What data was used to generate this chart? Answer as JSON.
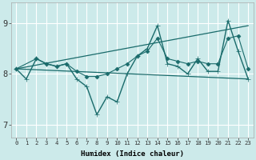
{
  "xlabel": "Humidex (Indice chaleur)",
  "bg_color": "#cceaea",
  "grid_color": "#ffffff",
  "line_color": "#1a6b6b",
  "xlim": [
    -0.5,
    23.5
  ],
  "ylim": [
    6.75,
    9.4
  ],
  "yticks": [
    7,
    8,
    9
  ],
  "xticks": [
    0,
    1,
    2,
    3,
    4,
    5,
    6,
    7,
    8,
    9,
    10,
    11,
    12,
    13,
    14,
    15,
    16,
    17,
    18,
    19,
    20,
    21,
    22,
    23
  ],
  "series": [
    {
      "x": [
        0,
        1,
        2,
        3,
        4,
        5,
        6,
        7,
        8,
        9,
        10,
        11,
        12,
        13,
        14,
        15,
        16,
        17,
        18,
        19,
        20,
        21,
        22,
        23
      ],
      "y": [
        8.1,
        7.9,
        8.3,
        8.2,
        8.15,
        8.2,
        7.9,
        7.75,
        7.2,
        7.55,
        7.45,
        8.0,
        8.35,
        8.5,
        8.95,
        8.2,
        8.15,
        8.0,
        8.3,
        8.05,
        8.05,
        9.05,
        8.45,
        7.9
      ],
      "marker": "+",
      "markersize": 5,
      "linewidth": 1.0
    },
    {
      "x": [
        0,
        23
      ],
      "y": [
        8.1,
        8.95
      ],
      "marker": null,
      "markersize": 0,
      "linewidth": 0.9
    },
    {
      "x": [
        0,
        2,
        3,
        4,
        5,
        6,
        7,
        8,
        9,
        10,
        11,
        12,
        13,
        14,
        15,
        16,
        17,
        18,
        19,
        20,
        21,
        22,
        23
      ],
      "y": [
        8.1,
        8.3,
        8.2,
        8.15,
        8.2,
        8.05,
        7.95,
        7.95,
        8.0,
        8.1,
        8.2,
        8.35,
        8.45,
        8.7,
        8.3,
        8.25,
        8.2,
        8.25,
        8.2,
        8.2,
        8.7,
        8.75,
        8.1
      ],
      "marker": "D",
      "markersize": 2.5,
      "linewidth": 0.8
    },
    {
      "x": [
        0,
        23
      ],
      "y": [
        8.1,
        7.9
      ],
      "marker": null,
      "markersize": 0,
      "linewidth": 0.9
    }
  ]
}
